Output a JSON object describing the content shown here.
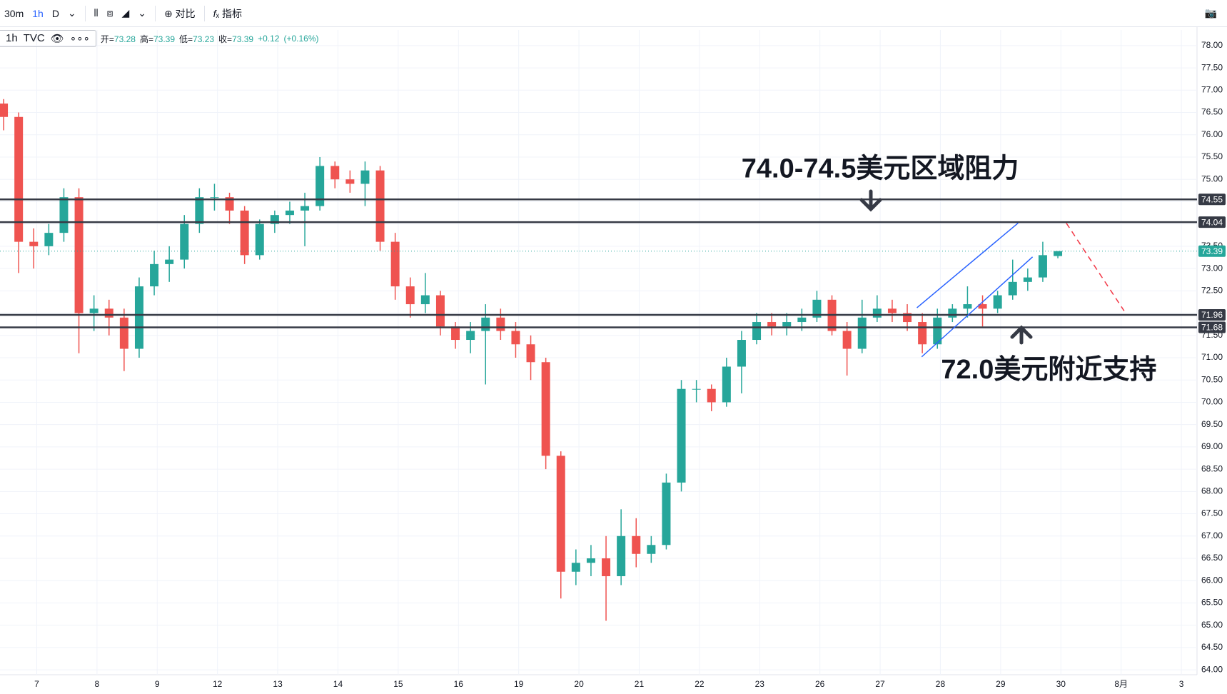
{
  "toolbar": {
    "intervals": [
      "30m",
      "1h",
      "D"
    ],
    "compare": "对比",
    "indicators": "指标"
  },
  "legend": {
    "interval": "1h",
    "source": "TVC",
    "fields": [
      {
        "label": "开=",
        "value": 73.28
      },
      {
        "label": "高=",
        "value": 73.39
      },
      {
        "label": "低=",
        "value": 73.23
      },
      {
        "label": "收=",
        "value": 73.39
      }
    ],
    "change": "+0.12",
    "change_pct": "(+0.16%)"
  },
  "chart_data": {
    "type": "candlestick",
    "up_color": "#26a69a",
    "down_color": "#ef5350",
    "xlim": [
      -0.61,
      19.26
    ],
    "xticks": [
      {
        "value": 0,
        "label": "7"
      },
      {
        "value": 1,
        "label": "8"
      },
      {
        "value": 2,
        "label": "9"
      },
      {
        "value": 3,
        "label": "12"
      },
      {
        "value": 4,
        "label": "13"
      },
      {
        "value": 5,
        "label": "14"
      },
      {
        "value": 6,
        "label": "15"
      },
      {
        "value": 7,
        "label": "16"
      },
      {
        "value": 8,
        "label": "19"
      },
      {
        "value": 9,
        "label": "20"
      },
      {
        "value": 10,
        "label": "21"
      },
      {
        "value": 11,
        "label": "22"
      },
      {
        "value": 12,
        "label": "23"
      },
      {
        "value": 13,
        "label": "26"
      },
      {
        "value": 14,
        "label": "27"
      },
      {
        "value": 15,
        "label": "28"
      },
      {
        "value": 16,
        "label": "29"
      },
      {
        "value": 17,
        "label": "30"
      },
      {
        "value": 18,
        "label": "8月"
      },
      {
        "value": 19,
        "label": "3"
      }
    ],
    "ylim": [
      63.89,
      78.35
    ],
    "yticks": [
      {
        "value": 64,
        "label": "64.00"
      },
      {
        "value": 64.5,
        "label": "64.50"
      },
      {
        "value": 65,
        "label": "65.00"
      },
      {
        "value": 65.5,
        "label": "65.50"
      },
      {
        "value": 66,
        "label": "66.00"
      },
      {
        "value": 66.5,
        "label": "66.50"
      },
      {
        "value": 67,
        "label": "67.00"
      },
      {
        "value": 67.5,
        "label": "67.50"
      },
      {
        "value": 68,
        "label": "68.00"
      },
      {
        "value": 68.5,
        "label": "68.50"
      },
      {
        "value": 69,
        "label": "69.00"
      },
      {
        "value": 69.5,
        "label": "69.50"
      },
      {
        "value": 70,
        "label": "70.00"
      },
      {
        "value": 70.5,
        "label": "70.50"
      },
      {
        "value": 71,
        "label": "71.00"
      },
      {
        "value": 71.5,
        "label": "71.50"
      },
      {
        "value": 72,
        "label": "72.00"
      },
      {
        "value": 72.5,
        "label": "72.50"
      },
      {
        "value": 73,
        "label": "73.00"
      },
      {
        "value": 73.5,
        "label": "73.50"
      },
      {
        "value": 74,
        "label": "74.00"
      },
      {
        "value": 74.5,
        "label": "74.50"
      },
      {
        "value": 75,
        "label": "75.00"
      },
      {
        "value": 75.5,
        "label": "75.50"
      },
      {
        "value": 76,
        "label": "76.00"
      },
      {
        "value": 76.5,
        "label": "76.50"
      },
      {
        "value": 77,
        "label": "77.00"
      },
      {
        "value": 77.5,
        "label": "77.50"
      },
      {
        "value": 78,
        "label": "78.00"
      }
    ],
    "grid": true,
    "x": [
      -0.55,
      -0.3,
      -0.05,
      0.2,
      0.45,
      0.7,
      0.95,
      1.2,
      1.45,
      1.7,
      1.95,
      2.2,
      2.45,
      2.7,
      2.95,
      3.2,
      3.45,
      3.7,
      3.95,
      4.2,
      4.45,
      4.7,
      4.95,
      5.2,
      5.45,
      5.7,
      5.95,
      6.2,
      6.45,
      6.7,
      6.95,
      7.2,
      7.45,
      7.7,
      7.95,
      8.2,
      8.45,
      8.7,
      8.95,
      9.2,
      9.45,
      9.7,
      9.95,
      10.2,
      10.45,
      10.7,
      10.95,
      11.2,
      11.45,
      11.7,
      11.95,
      12.2,
      12.45,
      12.7,
      12.95,
      13.2,
      13.45,
      13.7,
      13.95,
      14.2,
      14.45,
      14.7,
      14.95,
      15.2,
      15.45,
      15.7,
      15.95,
      16.2,
      16.45,
      16.7,
      16.95
    ],
    "ohlc": [
      [
        76.7,
        76.8,
        76.1,
        76.4
      ],
      [
        76.4,
        76.5,
        72.9,
        73.6
      ],
      [
        73.6,
        73.9,
        73.0,
        73.5
      ],
      [
        73.5,
        74.0,
        73.3,
        73.8
      ],
      [
        73.8,
        74.8,
        73.6,
        74.6
      ],
      [
        74.6,
        74.8,
        71.1,
        72.0
      ],
      [
        72.0,
        72.4,
        71.6,
        72.1
      ],
      [
        72.1,
        72.3,
        71.5,
        71.9
      ],
      [
        71.9,
        72.1,
        70.7,
        71.2
      ],
      [
        71.2,
        72.8,
        71.0,
        72.6
      ],
      [
        72.6,
        73.4,
        72.4,
        73.1
      ],
      [
        73.1,
        73.5,
        72.7,
        73.2
      ],
      [
        73.2,
        74.2,
        73.0,
        74.0
      ],
      [
        74.0,
        74.8,
        73.8,
        74.6
      ],
      [
        74.6,
        74.9,
        74.3,
        74.6
      ],
      [
        74.6,
        74.7,
        74.0,
        74.3
      ],
      [
        74.3,
        74.4,
        73.1,
        73.3
      ],
      [
        73.3,
        74.1,
        73.2,
        74.0
      ],
      [
        74.0,
        74.3,
        73.8,
        74.2
      ],
      [
        74.2,
        74.5,
        74.0,
        74.3
      ],
      [
        74.3,
        74.7,
        73.5,
        74.4
      ],
      [
        74.4,
        75.5,
        74.3,
        75.3
      ],
      [
        75.3,
        75.4,
        74.8,
        75.0
      ],
      [
        75.0,
        75.2,
        74.7,
        74.9
      ],
      [
        74.9,
        75.4,
        74.4,
        75.2
      ],
      [
        75.2,
        75.3,
        73.4,
        73.6
      ],
      [
        73.6,
        73.8,
        72.3,
        72.6
      ],
      [
        72.6,
        72.8,
        71.9,
        72.2
      ],
      [
        72.2,
        72.9,
        72.0,
        72.4
      ],
      [
        72.4,
        72.5,
        71.5,
        71.7
      ],
      [
        71.7,
        71.8,
        71.2,
        71.4
      ],
      [
        71.4,
        71.8,
        71.1,
        71.6
      ],
      [
        71.6,
        72.2,
        70.4,
        71.9
      ],
      [
        71.9,
        72.1,
        71.4,
        71.6
      ],
      [
        71.6,
        71.8,
        71.0,
        71.3
      ],
      [
        71.3,
        71.5,
        70.5,
        70.9
      ],
      [
        70.9,
        71.0,
        68.5,
        68.8
      ],
      [
        68.8,
        68.9,
        65.6,
        66.2
      ],
      [
        66.2,
        66.7,
        65.9,
        66.4
      ],
      [
        66.4,
        66.8,
        66.1,
        66.5
      ],
      [
        66.5,
        67.0,
        65.1,
        66.1
      ],
      [
        66.1,
        67.6,
        65.9,
        67.0
      ],
      [
        67.0,
        67.4,
        66.3,
        66.6
      ],
      [
        66.6,
        67.0,
        66.4,
        66.8
      ],
      [
        66.8,
        68.4,
        66.7,
        68.2
      ],
      [
        68.2,
        70.5,
        68.0,
        70.3
      ],
      [
        70.3,
        70.5,
        70.0,
        70.3
      ],
      [
        70.3,
        70.4,
        69.8,
        70.0
      ],
      [
        70.0,
        71.0,
        69.9,
        70.8
      ],
      [
        70.8,
        71.6,
        70.2,
        71.4
      ],
      [
        71.4,
        72.0,
        71.3,
        71.8
      ],
      [
        71.8,
        72.0,
        71.5,
        71.7
      ],
      [
        71.7,
        72.0,
        71.5,
        71.8
      ],
      [
        71.8,
        72.1,
        71.6,
        71.9
      ],
      [
        71.9,
        72.5,
        71.8,
        72.3
      ],
      [
        72.3,
        72.4,
        71.5,
        71.6
      ],
      [
        71.6,
        71.8,
        70.6,
        71.2
      ],
      [
        71.2,
        72.3,
        71.1,
        71.9
      ],
      [
        71.9,
        72.4,
        71.8,
        72.1
      ],
      [
        72.1,
        72.3,
        71.8,
        72.0
      ],
      [
        72.0,
        72.2,
        71.6,
        71.8
      ],
      [
        71.8,
        72.0,
        71.1,
        71.3
      ],
      [
        71.3,
        72.1,
        71.2,
        71.9
      ],
      [
        71.9,
        72.2,
        71.8,
        72.1
      ],
      [
        72.1,
        72.6,
        71.9,
        72.2
      ],
      [
        72.2,
        72.4,
        71.7,
        72.1
      ],
      [
        72.1,
        72.5,
        72.0,
        72.4
      ],
      [
        72.4,
        73.2,
        72.3,
        72.7
      ],
      [
        72.7,
        73.0,
        72.5,
        72.8
      ],
      [
        72.8,
        73.6,
        72.7,
        73.3
      ],
      [
        73.28,
        73.39,
        73.23,
        73.39
      ]
    ],
    "levels": [
      {
        "value": 74.55,
        "color": "#363a45",
        "dotted": false
      },
      {
        "value": 74.04,
        "color": "#363a45",
        "dotted": false
      },
      {
        "value": 73.39,
        "color": "#26a69a",
        "dotted": true
      },
      {
        "value": 71.96,
        "color": "#363a45",
        "dotted": false
      },
      {
        "value": 71.68,
        "color": "#363a45",
        "dotted": false
      }
    ],
    "trendlines": [
      {
        "color": "#2962ff",
        "dashed": false,
        "points": [
          [
            14.61,
            72.12
          ],
          [
            16.29,
            74.02
          ]
        ]
      },
      {
        "color": "#2962ff",
        "dashed": false,
        "points": [
          [
            14.69,
            71.02
          ],
          [
            16.53,
            73.26
          ]
        ]
      },
      {
        "color": "#f23645",
        "dashed": true,
        "points": [
          [
            17.09,
            74.02
          ],
          [
            18.05,
            72.05
          ]
        ]
      }
    ],
    "annotations": [
      {
        "text": "74.0-74.5美元区域阻力",
        "x": 14.0,
        "y": 75.2
      },
      {
        "text": "72.0美元附近支持",
        "x": 16.8,
        "y": 70.7
      }
    ]
  }
}
